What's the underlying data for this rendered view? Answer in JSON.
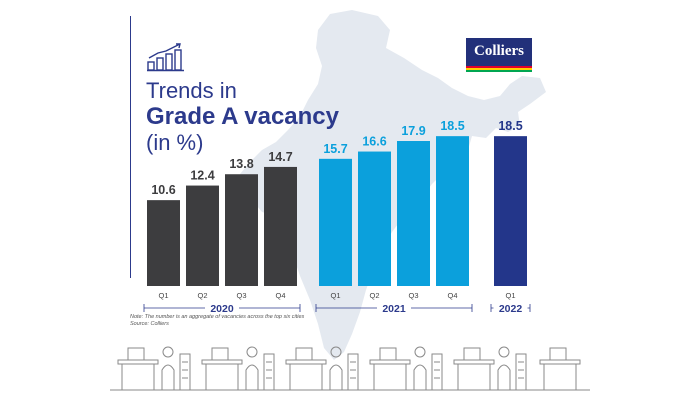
{
  "header": {
    "title_line1": "Trends in",
    "title_line2": "Grade A vacancy",
    "title_line3": "(in %)",
    "icon": "bar-chart-growth-icon"
  },
  "logo": {
    "text": "Colliers",
    "colors": [
      "#e4002b",
      "#ffd100",
      "#00a651"
    ]
  },
  "footer": {
    "note": "Note: The number is an aggregate of vacancies across the top six cities",
    "source": "Source: Colliers"
  },
  "colors": {
    "y2020": "#3d3d3f",
    "y2021": "#0ba0dc",
    "y2022": "#23368a",
    "map": "#e4e9f0",
    "title": "#2c3a8c"
  },
  "chart_data": {
    "type": "bar",
    "title": "Trends in Grade A vacancy (in %)",
    "unit": "%",
    "groups": [
      {
        "year": "2020",
        "categories": [
          "Q1",
          "Q2",
          "Q3",
          "Q4"
        ],
        "values": [
          10.6,
          12.4,
          13.8,
          14.7
        ]
      },
      {
        "year": "2021",
        "categories": [
          "Q1",
          "Q2",
          "Q3",
          "Q4"
        ],
        "values": [
          15.7,
          16.6,
          17.9,
          18.5
        ]
      },
      {
        "year": "2022",
        "categories": [
          "Q1"
        ],
        "values": [
          18.5
        ]
      }
    ]
  }
}
